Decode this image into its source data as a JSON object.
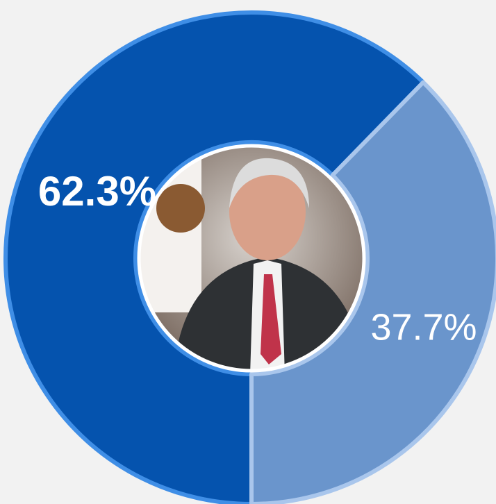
{
  "chart_data": {
    "type": "donut",
    "categories": [
      null,
      null
    ],
    "values": [
      62.3,
      37.7
    ],
    "value_labels": [
      "62.3%",
      "37.7%"
    ],
    "colors": [
      "#0553ae",
      "#6a95cc"
    ]
  }
}
